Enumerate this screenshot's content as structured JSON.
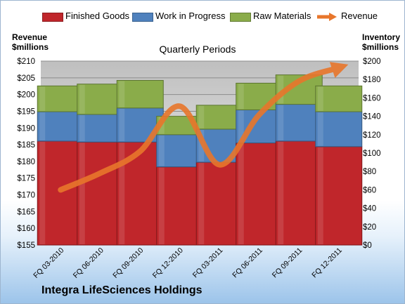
{
  "chart_data": {
    "type": "bar",
    "title": "Quarterly Periods",
    "company": "Integra LifeSciences Holdings",
    "categories": [
      "FQ 03-2010",
      "FQ 06-2010",
      "FQ 09-2010",
      "FQ 12-2010",
      "FQ 03-2011",
      "FQ 06-2011",
      "FQ 09-2011",
      "FQ 12-2011"
    ],
    "stacked": true,
    "ylabel_left": [
      "Revenue",
      "$millions"
    ],
    "ylabel_right": [
      "Inventory",
      "$millions"
    ],
    "y_left": {
      "min": 155,
      "max": 210,
      "step": 5,
      "prefix": "$"
    },
    "y_right": {
      "min": 0,
      "max": 200,
      "step": 20,
      "prefix": "$"
    },
    "grid": true,
    "legend_position": "top",
    "series": [
      {
        "name": "Finished Goods",
        "axis": "right",
        "color": "#c0262b",
        "values": [
          113,
          112,
          112,
          85,
          90,
          111,
          113,
          107
        ]
      },
      {
        "name": "Work in Progress",
        "axis": "right",
        "color": "#4f81bd",
        "values": [
          32,
          30,
          37,
          35,
          36,
          36,
          40,
          38
        ]
      },
      {
        "name": "Raw Materials",
        "axis": "right",
        "color": "#8aac4a",
        "values": [
          28,
          33,
          30,
          20,
          26,
          29,
          32,
          28
        ]
      },
      {
        "name": "Revenue",
        "axis": "left",
        "type": "line",
        "color": "#e8762b",
        "values": [
          171.5,
          176.5,
          183,
          196.5,
          179,
          194,
          204,
          208
        ]
      }
    ]
  }
}
